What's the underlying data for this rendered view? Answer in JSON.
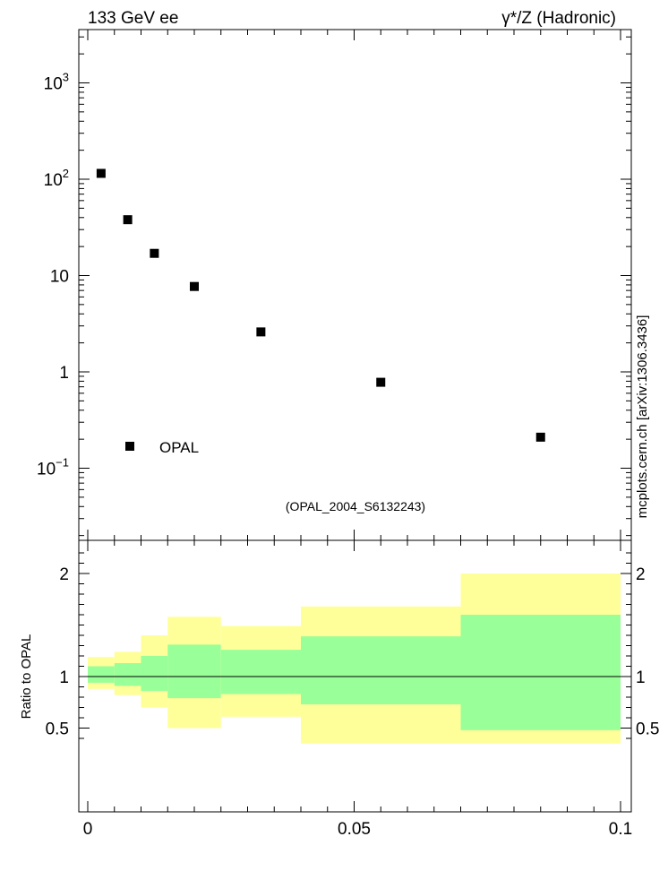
{
  "header": {
    "left_label": "133 GeV ee",
    "right_label": "γ*/Z (Hadronic)"
  },
  "side_label": "mcplots.cern.ch [arXiv:1306.3436]",
  "analysis_label": "(OPAL_2004_S6132243)",
  "colors": {
    "band_outer": "#ffff99",
    "band_inner": "#99ff99",
    "marker": "#000000",
    "frame": "#000000",
    "analysis_text": "#999999",
    "side_text": "#666666"
  },
  "chart_data": [
    {
      "type": "scatter",
      "panel": "main",
      "yscale": "log",
      "xlim": [
        0,
        0.1
      ],
      "ylim": [
        0.02,
        3000
      ],
      "ytick_labels": [
        {
          "value": 1000,
          "base": "10",
          "exp": "3"
        },
        {
          "value": 100,
          "base": "10",
          "exp": "2"
        },
        {
          "value": 10,
          "base": "10",
          "exp": ""
        },
        {
          "value": 1,
          "base": "1",
          "exp": ""
        },
        {
          "value": 0.1,
          "base": "10",
          "exp": "−1"
        }
      ],
      "series": [
        {
          "name": "OPAL",
          "x": [
            0.0025,
            0.0075,
            0.0125,
            0.02,
            0.0325,
            0.055,
            0.085
          ],
          "y": [
            115,
            38,
            17,
            7.7,
            2.6,
            0.78,
            0.21
          ]
        }
      ],
      "legend": {
        "position": "bottom-left",
        "entries": [
          "OPAL"
        ]
      }
    },
    {
      "type": "area",
      "panel": "ratio",
      "ylabel": "Ratio to OPAL",
      "xlim": [
        0,
        0.1
      ],
      "ylim": [
        0.35,
        2.3
      ],
      "ytick_labels": [
        "2",
        "1",
        "0.5"
      ],
      "xtick_labels": [
        "0",
        "0.05",
        "0.1"
      ],
      "reference_line": 1,
      "bins": [
        {
          "x_low": 0.0,
          "x_high": 0.005,
          "outer": [
            0.88,
            1.19
          ],
          "inner": [
            0.94,
            1.1
          ]
        },
        {
          "x_low": 0.005,
          "x_high": 0.01,
          "outer": [
            0.82,
            1.24
          ],
          "inner": [
            0.91,
            1.13
          ]
        },
        {
          "x_low": 0.01,
          "x_high": 0.015,
          "outer": [
            0.7,
            1.4
          ],
          "inner": [
            0.86,
            1.2
          ]
        },
        {
          "x_low": 0.015,
          "x_high": 0.025,
          "outer": [
            0.5,
            1.58
          ],
          "inner": [
            0.79,
            1.31
          ]
        },
        {
          "x_low": 0.025,
          "x_high": 0.04,
          "outer": [
            0.61,
            1.49
          ],
          "inner": [
            0.83,
            1.26
          ]
        },
        {
          "x_low": 0.04,
          "x_high": 0.07,
          "outer": [
            0.35,
            1.68
          ],
          "inner": [
            0.73,
            1.39
          ]
        },
        {
          "x_low": 0.07,
          "x_high": 0.1,
          "outer": [
            0.35,
            2.0
          ],
          "inner": [
            0.48,
            1.6
          ]
        }
      ]
    }
  ]
}
